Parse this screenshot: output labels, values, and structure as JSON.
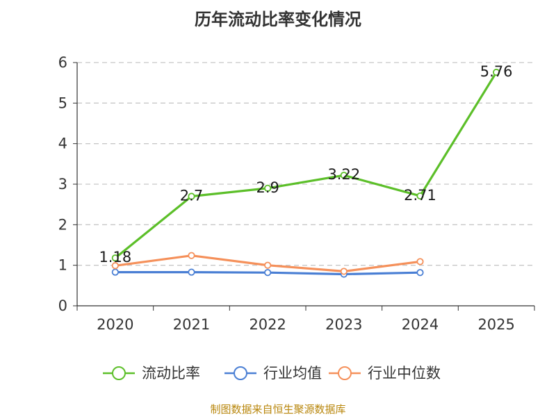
{
  "title": "历年流动比率变化情况",
  "source": "制图数据来自恒生聚源数据库",
  "colors": {
    "current_ratio": "#5cbf29",
    "industry_avg": "#4a7fd4",
    "industry_median": "#f5905a",
    "grid": "#c8c8c8",
    "axis": "#333333"
  },
  "chart_data": {
    "type": "line",
    "title": "历年流动比率变化情况",
    "categories": [
      "2020",
      "2021",
      "2022",
      "2023",
      "2024",
      "2025"
    ],
    "ylim": [
      0,
      6
    ],
    "yticks": [
      0,
      1,
      2,
      3,
      4,
      5,
      6
    ],
    "grid": true,
    "legend_position": "bottom",
    "series": [
      {
        "name": "流动比率",
        "color": "#5cbf29",
        "values": [
          1.18,
          2.7,
          2.9,
          3.22,
          2.71,
          5.76
        ],
        "labels": [
          "1.18",
          "2.7",
          "2.9",
          "3.22",
          "2.71",
          "5.76"
        ],
        "show_labels": true
      },
      {
        "name": "行业均值",
        "color": "#4a7fd4",
        "values": [
          0.83,
          0.83,
          0.82,
          0.78,
          0.82,
          null
        ],
        "show_labels": false
      },
      {
        "name": "行业中位数",
        "color": "#f5905a",
        "values": [
          0.99,
          1.24,
          1.0,
          0.85,
          1.09,
          null
        ],
        "show_labels": false
      }
    ]
  }
}
